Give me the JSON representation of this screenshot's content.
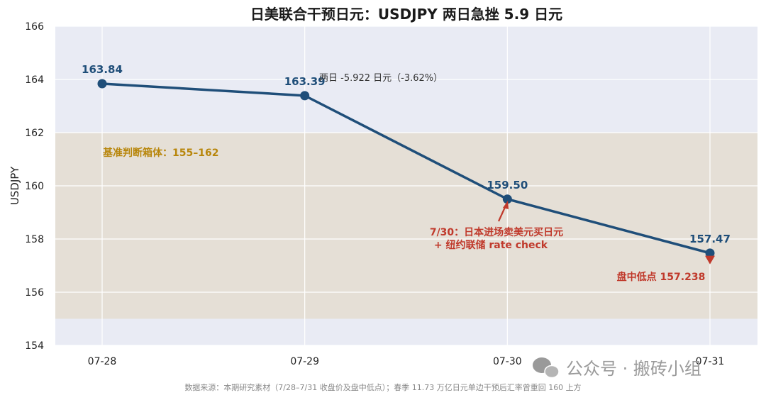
{
  "chart_data": {
    "type": "line",
    "title": "日美联合干预日元：USDJPY 两日急挫 5.9 日元",
    "ylabel": "USDJPY",
    "xlabel": "",
    "categories": [
      "07-28",
      "07-29",
      "07-30",
      "07-31"
    ],
    "series": [
      {
        "values": [
          163.84,
          163.39,
          159.5,
          157.47
        ],
        "color": "#1f4e79"
      }
    ],
    "data_labels": [
      "163.84",
      "163.39",
      "159.50",
      "157.47"
    ],
    "ylim": [
      154,
      166
    ],
    "yticks": [
      154,
      156,
      158,
      160,
      162,
      164,
      166
    ],
    "band": {
      "from": 155,
      "to": 162,
      "label": "基准判断箱体：155–162",
      "color": "#e5dfd6"
    },
    "intraday_low": {
      "category": "07-31",
      "value": 157.238,
      "label": "盘中低点 157.238",
      "color": "#c0392b"
    },
    "annotations": {
      "two_day_change": "两日 -5.922 日元（-3.62%）",
      "event_line1": "7/30：日本进场卖美元买日元",
      "event_line2": "+ 纽约联储 rate check",
      "event_color": "#c0392b"
    },
    "grid": true,
    "background": "#e9ebf4",
    "source": "数据来源：本期研究素材（7/28–7/31 收盘价及盘中低点）；春季 11.73 万亿日元单边干预后汇率曾重回 160 上方",
    "watermark": "公众号 · 搬砖小组"
  }
}
